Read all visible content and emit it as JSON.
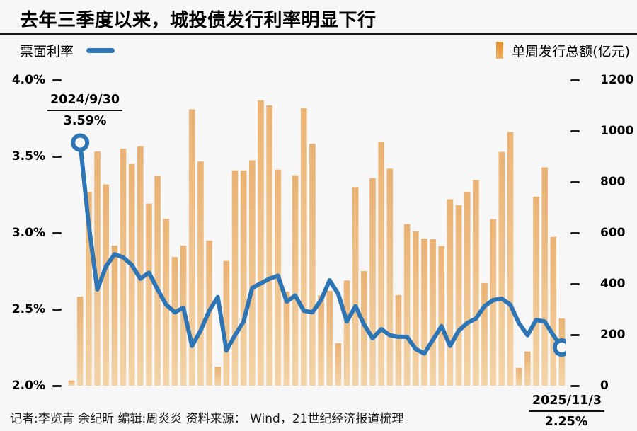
{
  "title": "去年三季度以来，城投债发行利率明显下行",
  "legend": {
    "line_label": "票面利率",
    "bar_label": "单周发行总额(亿元)"
  },
  "annotations": {
    "start": {
      "date": "2024/9/30",
      "value": "3.59%"
    },
    "end": {
      "date": "2025/11/3",
      "value": "2.25%"
    }
  },
  "footer": "记者:李览青 余纪昕  编辑:周炎炎  资料来源： Wind，21世纪经济报道梳理",
  "colors": {
    "background": "#f7f7f7",
    "line": "#2E75B6",
    "bar_top": "#EAB273",
    "bar_bottom": "#F3D3A6",
    "legend_bar": "#E78E2C",
    "text": "#000000"
  },
  "chart_data": {
    "type": "combo_bar_line",
    "title": "去年三季度以来，城投债发行利率明显下行",
    "x": {
      "description": "weeks from 2024/9/30 to 2025/11/3",
      "count": 58,
      "tick_labels": []
    },
    "left_axis": {
      "series": "票面利率",
      "unit": "%",
      "range": [
        2.0,
        4.0
      ],
      "tick_labels": [
        "4.0%",
        "3.5%",
        "3.0%",
        "2.5%",
        "2.0%"
      ]
    },
    "right_axis": {
      "series": "单周发行总额",
      "unit": "亿元",
      "range": [
        0,
        1200
      ],
      "tick_labels": [
        "1200",
        "1000",
        "800",
        "600",
        "400",
        "200",
        "0"
      ]
    },
    "grid": "none",
    "legend_position": "top",
    "series": [
      {
        "name": "单周发行总额(亿元)",
        "type": "bar",
        "axis": "right",
        "values": [
          20,
          350,
          760,
          920,
          790,
          550,
          930,
          870,
          940,
          715,
          825,
          655,
          505,
          550,
          1085,
          880,
          570,
          75,
          490,
          845,
          845,
          885,
          1120,
          1100,
          848,
          370,
          826,
          1090,
          950,
          355,
          372,
          167,
          413,
          780,
          450,
          815,
          958,
          852,
          356,
          634,
          606,
          578,
          575,
          548,
          732,
          709,
          760,
          807,
          403,
          654,
          918,
          996,
          70,
          134,
          742,
          857,
          584,
          264
        ]
      },
      {
        "name": "票面利率",
        "type": "line",
        "axis": "left",
        "start_slot": 1,
        "values_pct": [
          3.59,
          3.05,
          2.63,
          2.78,
          2.86,
          2.84,
          2.79,
          2.7,
          2.74,
          2.63,
          2.53,
          2.48,
          2.51,
          2.26,
          2.36,
          2.49,
          2.58,
          2.23,
          2.33,
          2.42,
          2.64,
          2.67,
          2.7,
          2.72,
          2.55,
          2.59,
          2.49,
          2.48,
          2.56,
          2.69,
          2.6,
          2.42,
          2.52,
          2.4,
          2.31,
          2.37,
          2.33,
          2.32,
          2.32,
          2.24,
          2.21,
          2.3,
          2.39,
          2.26,
          2.36,
          2.41,
          2.44,
          2.52,
          2.56,
          2.57,
          2.53,
          2.41,
          2.33,
          2.43,
          2.42,
          2.33,
          2.25
        ]
      }
    ],
    "point_annotations": [
      {
        "position": "first_point",
        "date": "2024/9/30",
        "value_pct": 3.59,
        "marker": "open-circle"
      },
      {
        "position": "last_point",
        "date": "2025/11/3",
        "value_pct": 2.25,
        "marker": "open-circle"
      }
    ]
  }
}
